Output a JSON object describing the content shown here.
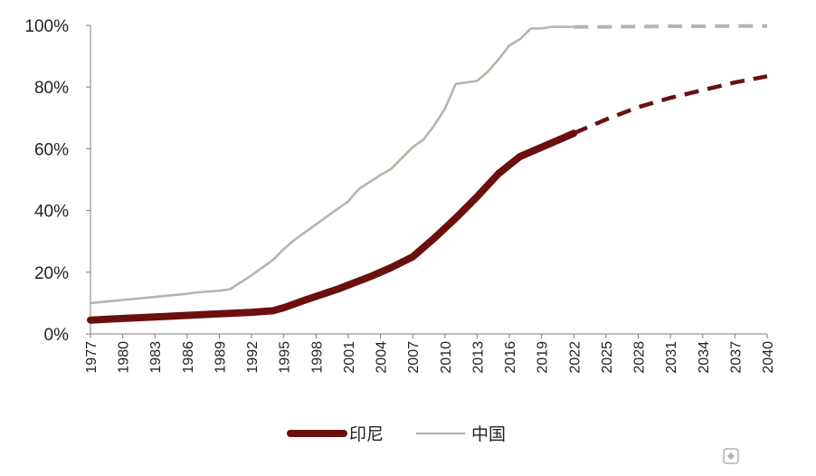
{
  "chart_data": {
    "type": "line",
    "title": "",
    "xlabel": "",
    "ylabel": "",
    "xlim": [
      1977,
      2040
    ],
    "ylim": [
      0,
      100
    ],
    "y_ticks": [
      "0%",
      "20%",
      "40%",
      "60%",
      "80%",
      "100%"
    ],
    "y_tick_values": [
      0,
      20,
      40,
      60,
      80,
      100
    ],
    "x_ticks": [
      "1977",
      "1980",
      "1983",
      "1986",
      "1989",
      "1992",
      "1995",
      "1998",
      "2001",
      "2004",
      "2007",
      "2010",
      "2013",
      "2016",
      "2019",
      "2022",
      "2025",
      "2028",
      "2031",
      "2034",
      "2037",
      "2040"
    ],
    "x_tick_values": [
      1977,
      1980,
      1983,
      1986,
      1989,
      1992,
      1995,
      1998,
      2001,
      2004,
      2007,
      2010,
      2013,
      2016,
      2019,
      2022,
      2025,
      2028,
      2031,
      2034,
      2037,
      2040
    ],
    "grid": false,
    "legend_position": "bottom",
    "series": [
      {
        "name": "印尼",
        "color": "#6b0f0f",
        "style": "thick",
        "actual": {
          "x": [
            1977,
            1980,
            1983,
            1986,
            1989,
            1992,
            1994,
            1995,
            1997,
            2000,
            2003,
            2005,
            2007,
            2009,
            2011,
            2013,
            2015,
            2017,
            2019,
            2021,
            2022
          ],
          "y": [
            4.5,
            5.0,
            5.5,
            6.0,
            6.5,
            7.0,
            7.5,
            8.5,
            11.0,
            14.5,
            18.5,
            21.5,
            25.0,
            31.0,
            37.5,
            44.5,
            52.0,
            57.5,
            60.5,
            63.5,
            65.0
          ]
        },
        "forecast": {
          "x": [
            2022,
            2025,
            2028,
            2031,
            2034,
            2037,
            2040
          ],
          "y": [
            65.0,
            69.5,
            73.5,
            76.5,
            79.0,
            81.5,
            83.5
          ]
        }
      },
      {
        "name": "中国",
        "color": "#b4b6aa",
        "style": "thin",
        "actual": {
          "x": [
            1977,
            1980,
            1983,
            1986,
            1987,
            1989,
            1990,
            1992,
            1994,
            1995,
            1996,
            1998,
            1999,
            2000,
            2001,
            2002,
            2004,
            2005,
            2006,
            2007,
            2008,
            2009,
            2010,
            2011,
            2013,
            2014,
            2015,
            2016,
            2017,
            2018,
            2019,
            2020,
            2022
          ],
          "y": [
            10.0,
            11.0,
            12.0,
            13.0,
            13.5,
            14.0,
            14.5,
            19.0,
            24.0,
            27.5,
            30.5,
            35.5,
            38.0,
            40.5,
            43.0,
            47.0,
            51.5,
            53.5,
            57.0,
            60.5,
            63.0,
            67.5,
            73.0,
            81.0,
            82.0,
            85.0,
            89.0,
            93.5,
            95.5,
            99.0,
            99.0,
            99.5,
            99.5
          ]
        },
        "forecast": {
          "x": [
            2022,
            2025,
            2028,
            2031,
            2034,
            2037,
            2040
          ],
          "y": [
            99.5,
            99.5,
            99.6,
            99.7,
            99.7,
            99.8,
            99.8
          ]
        }
      }
    ]
  }
}
